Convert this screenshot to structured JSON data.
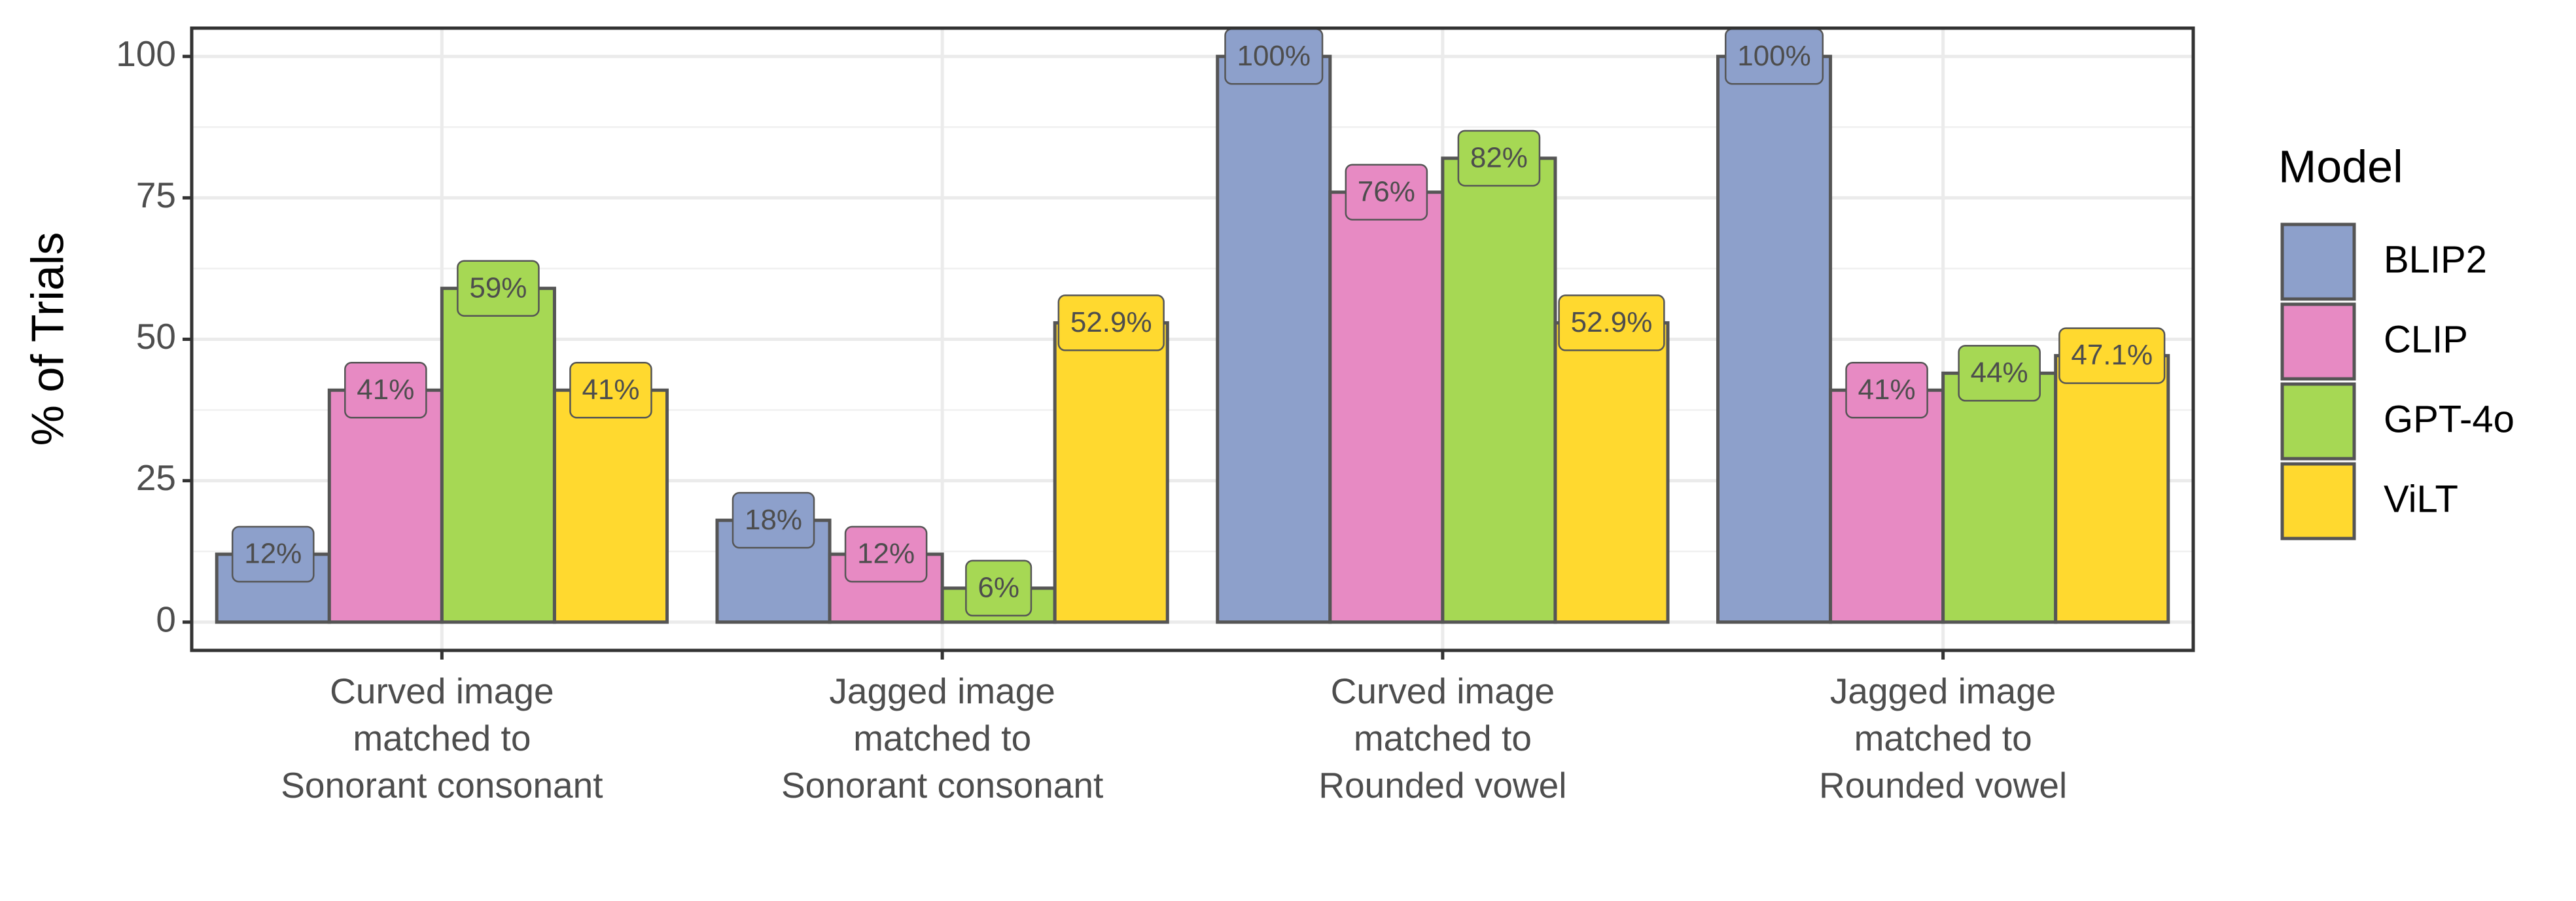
{
  "chart_data": {
    "type": "bar",
    "y_label": "% of Trials",
    "categories": [
      "Curved image\nmatched to\nSonorant consonant",
      "Jagged image\nmatched to\nSonorant consonant",
      "Curved image\nmatched to\nRounded vowel",
      "Jagged image\nmatched to\nRounded vowel"
    ],
    "series": [
      {
        "name": "BLIP2",
        "color": "#8da0cb",
        "values": [
          12,
          18,
          100,
          100
        ],
        "value_labels": [
          "12%",
          "18%",
          "100%",
          "100%"
        ]
      },
      {
        "name": "CLIP",
        "color": "#e78ac3",
        "values": [
          41,
          12,
          76,
          41
        ],
        "value_labels": [
          "41%",
          "12%",
          "76%",
          "41%"
        ]
      },
      {
        "name": "GPT-4o",
        "color": "#a6d854",
        "values": [
          59,
          6,
          82,
          44
        ],
        "value_labels": [
          "59%",
          "6%",
          "82%",
          "44%"
        ]
      },
      {
        "name": "ViLT",
        "color": "#ffd92f",
        "values": [
          41,
          52.9,
          52.9,
          47.1
        ],
        "value_labels": [
          "41%",
          "52.9%",
          "52.9%",
          "47.1%"
        ]
      }
    ],
    "legend_title": "Model",
    "legend_position": "right",
    "ylim": [
      -5,
      105
    ],
    "yticks": [
      0,
      25,
      50,
      75,
      100
    ],
    "grid": true
  }
}
